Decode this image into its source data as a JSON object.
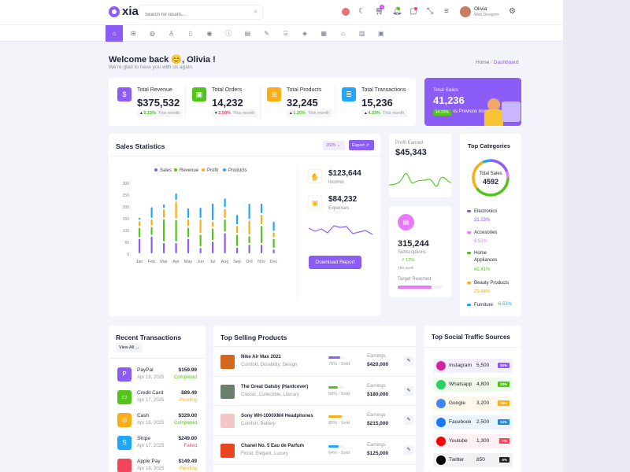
{
  "header": {
    "logo": "xia",
    "search_placeholder": "Search for results...",
    "cart_count": "4",
    "user_name": "Olivia",
    "user_role": "Web Designer"
  },
  "nav": {
    "icons": [
      "home-icon",
      "grid-icon",
      "box-icon",
      "medal-icon",
      "file-icon",
      "palette-icon",
      "info-icon",
      "document-icon",
      "pen-icon",
      "gift-icon",
      "layers-icon",
      "table-icon",
      "chart-icon",
      "map-icon",
      "apps-icon"
    ]
  },
  "welcome": {
    "title": "Welcome back 😊, Olivia !",
    "subtitle": "We're glad to have you with us again.",
    "breadcrumb": [
      "Home",
      "Dashboard"
    ]
  },
  "stats": [
    {
      "label": "Total Revenue",
      "value": "$375,532",
      "change": "5.15%",
      "dir": "up",
      "period": "This month",
      "color": "#8b5cf6",
      "icon": "$"
    },
    {
      "label": "Total Orders",
      "value": "14,232",
      "change": "2.58%",
      "dir": "down",
      "period": "This month",
      "color": "#52c41a",
      "icon": "▣"
    },
    {
      "label": "Total Products",
      "value": "32,245",
      "change": "1.25%",
      "dir": "up",
      "period": "This month",
      "color": "#faad14",
      "icon": "⊞"
    },
    {
      "label": "Total Transactions",
      "value": "15,236",
      "change": "4.33%",
      "dir": "up",
      "period": "This month",
      "color": "#1ea7fd",
      "icon": "≣"
    }
  ],
  "total_sales": {
    "label": "Total Sales",
    "value": "41,236",
    "badge": "14.23%",
    "note": "vs Previous month"
  },
  "sales_stats": {
    "title": "Sales Statistics",
    "year": "2025",
    "export": "Export",
    "income": "$123,644",
    "income_label": "Income",
    "expenses": "$84,232",
    "expenses_label": "Expenses",
    "download": "Download Report"
  },
  "chart_data": {
    "type": "bar",
    "stacked": true,
    "categories": [
      "Jan",
      "Feb",
      "Mar",
      "Apr",
      "May",
      "Jun",
      "Jul",
      "Aug",
      "Sep",
      "Oct",
      "Nov",
      "Dec"
    ],
    "series": [
      {
        "name": "Sales",
        "color": "#8b5cf6",
        "values": [
          68,
          78,
          51,
          51,
          68,
          29,
          56,
          92,
          31,
          43,
          43,
          23
        ]
      },
      {
        "name": "Revenue",
        "color": "#52c41a",
        "values": [
          47,
          40,
          100,
          97,
          47,
          57,
          56,
          58,
          55,
          36,
          80,
          45
        ]
      },
      {
        "name": "Profit",
        "color": "#faad14",
        "values": [
          27,
          32,
          42,
          78,
          35,
          64,
          28,
          45,
          37,
          66,
          47,
          27
        ]
      },
      {
        "name": "Products",
        "color": "#1ea7fd",
        "values": [
          16,
          52,
          20,
          35,
          47,
          50,
          77,
          44,
          46,
          72,
          47,
          45
        ]
      }
    ],
    "yticks": [
      0,
      50,
      100,
      150,
      200,
      250,
      300
    ],
    "ylim": [
      0,
      300
    ],
    "legend": "top"
  },
  "profit": {
    "label": "Profit Earned",
    "value": "$45,343"
  },
  "subs": {
    "value": "315,244",
    "label": "Subscriptions",
    "change": "12%",
    "period": "This week",
    "target": "Target Reached",
    "progress": 0.75
  },
  "categories": {
    "title": "Top Categories",
    "center_label": "Total Sales",
    "center_value": "4592",
    "items": [
      {
        "name": "Electronics",
        "pct": "21.23%",
        "color": "#8b5cf6",
        "share": 21.23
      },
      {
        "name": "Accesories",
        "pct": "6.53%",
        "color": "#e879f9",
        "share": 6.53
      },
      {
        "name": "Home Appliances",
        "pct": "42.41%",
        "color": "#52c41a",
        "share": 42.41
      },
      {
        "name": "Beauty Products",
        "pct": "29.84%",
        "color": "#faad14",
        "share": 29.84
      },
      {
        "name": "Furniture",
        "pct": "6.53%",
        "color": "#1ea7fd",
        "share": 6.53
      }
    ]
  },
  "transactions": {
    "title": "Recent Transactions",
    "view_all": "View All →",
    "items": [
      {
        "name": "PayPal",
        "date": "Apr 18, 2025",
        "amount": "$159.99",
        "status": "Completed",
        "color": "#8b5cf6",
        "sc": "#52c41a",
        "icon": "P"
      },
      {
        "name": "Credit Card",
        "date": "Apr 17, 2025",
        "amount": "$89.49",
        "status": "Pending",
        "color": "#52c41a",
        "sc": "#faad14",
        "icon": "▭"
      },
      {
        "name": "Cash",
        "date": "Apr 18, 2025",
        "amount": "$329.00",
        "status": "Completed",
        "color": "#faad14",
        "sc": "#52c41a",
        "icon": "◎"
      },
      {
        "name": "Stripe",
        "date": "Apr 17, 2025",
        "amount": "$249.00",
        "status": "Failed",
        "color": "#1ea7fd",
        "sc": "#f5455c",
        "icon": "S"
      },
      {
        "name": "Apple Pay",
        "date": "Apr 18, 2025",
        "amount": "$149.49",
        "status": "Pending",
        "color": "#f5455c",
        "sc": "#faad14",
        "icon": ""
      }
    ]
  },
  "products": {
    "title": "Top Selling Products",
    "earn_label": "Earnings",
    "items": [
      {
        "name": "Nike Air Max 2021",
        "tags": "Comfort, Durability, Design",
        "sold": "75% - Sold",
        "pct": 75,
        "earn": "$420,000",
        "color": "#8b5cf6",
        "thumb": "#d2691e"
      },
      {
        "name": "The Great Gatsby (Hardcover)",
        "tags": "Classic, Collectible, Literary",
        "sold": "58% - Sold",
        "pct": 58,
        "earn": "$180,000",
        "color": "#52c41a",
        "thumb": "#6b7f6e"
      },
      {
        "name": "Sony WH-1000XM4 Headphones",
        "tags": "Comfort, Battery",
        "sold": "85% - Sold",
        "pct": 85,
        "earn": "$215,000",
        "color": "#faad14",
        "thumb": "#f4c6c6"
      },
      {
        "name": "Chanel No. 5 Eau de Parfum",
        "tags": "Floral, Elegant, Luxury",
        "sold": "64% - Sold",
        "pct": 64,
        "earn": "$125,000",
        "color": "#1ea7fd",
        "thumb": "#e8461e"
      }
    ]
  },
  "social": {
    "title": "Top Social Traffic Sources",
    "items": [
      {
        "name": "Instagram",
        "value": "5,500",
        "pct": "30%",
        "color": "#8b5cf6",
        "bg": "#f4efff",
        "ic": "#d6249f"
      },
      {
        "name": "Whatsapp",
        "value": "4,800",
        "pct": "28%",
        "color": "#52c41a",
        "bg": "#effbea",
        "ic": "#25d366"
      },
      {
        "name": "Google",
        "value": "3,200",
        "pct": "18%",
        "color": "#faad14",
        "bg": "#fff8ea",
        "ic": "#4285f4"
      },
      {
        "name": "Facebook",
        "value": "2,500",
        "pct": "14%",
        "color": "#1e88e5",
        "bg": "#ecf5ff",
        "ic": "#1877f2"
      },
      {
        "name": "Youtube",
        "value": "1,300",
        "pct": "7%",
        "color": "#f5455c",
        "bg": "#fff0f1",
        "ic": "#ff0000"
      },
      {
        "name": "Twitter",
        "value": "850",
        "pct": "5%",
        "color": "#222",
        "bg": "#f1f1f3",
        "ic": "#000"
      }
    ]
  }
}
